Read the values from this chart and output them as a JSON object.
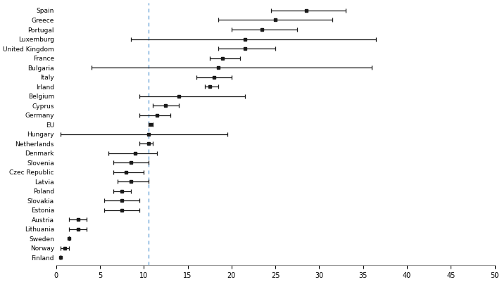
{
  "countries": [
    "Spain",
    "Greece",
    "Portugal",
    "Luxemburg",
    "United Kingdom",
    "France",
    "Bulgaria",
    "Italy",
    "Irland",
    "Belgium",
    "Cyprus",
    "Germany",
    "EU",
    "Hungary",
    "Netherlands",
    "Denmark",
    "Slovenia",
    "Czec Republic",
    "Latvia",
    "Poland",
    "Slovakia",
    "Estonia",
    "Austria",
    "Lithuania",
    "Sweden",
    "Norway",
    "Finland"
  ],
  "values": [
    28.5,
    25.0,
    23.5,
    21.5,
    21.5,
    19.0,
    18.5,
    18.0,
    17.5,
    14.0,
    12.5,
    11.5,
    10.8,
    10.5,
    10.5,
    9.0,
    8.5,
    8.0,
    8.5,
    7.5,
    7.5,
    7.5,
    2.5,
    2.5,
    1.5,
    1.0,
    0.5
  ],
  "ci_low": [
    24.5,
    18.5,
    20.0,
    8.5,
    18.5,
    17.5,
    4.0,
    16.0,
    17.0,
    9.5,
    11.0,
    9.5,
    10.5,
    0.5,
    9.5,
    6.0,
    6.5,
    6.5,
    7.0,
    6.5,
    5.5,
    5.5,
    1.5,
    1.5,
    1.5,
    0.5,
    0.5
  ],
  "ci_high": [
    33.0,
    31.5,
    27.5,
    36.5,
    25.0,
    21.0,
    36.0,
    20.0,
    18.5,
    21.5,
    14.0,
    13.0,
    11.0,
    19.5,
    11.0,
    11.5,
    10.5,
    10.0,
    10.5,
    8.5,
    9.5,
    9.5,
    3.5,
    3.5,
    1.5,
    1.5,
    0.5
  ],
  "dashed_line_x": 10.5,
  "xlim": [
    0,
    50
  ],
  "xticks": [
    0,
    5,
    10,
    15,
    20,
    25,
    30,
    35,
    40,
    45,
    50
  ],
  "marker_color": "#1a1a1a",
  "dashed_color": "#5b9bd5",
  "background_color": "#ffffff",
  "label_fontsize": 6.5,
  "tick_fontsize": 7.0
}
